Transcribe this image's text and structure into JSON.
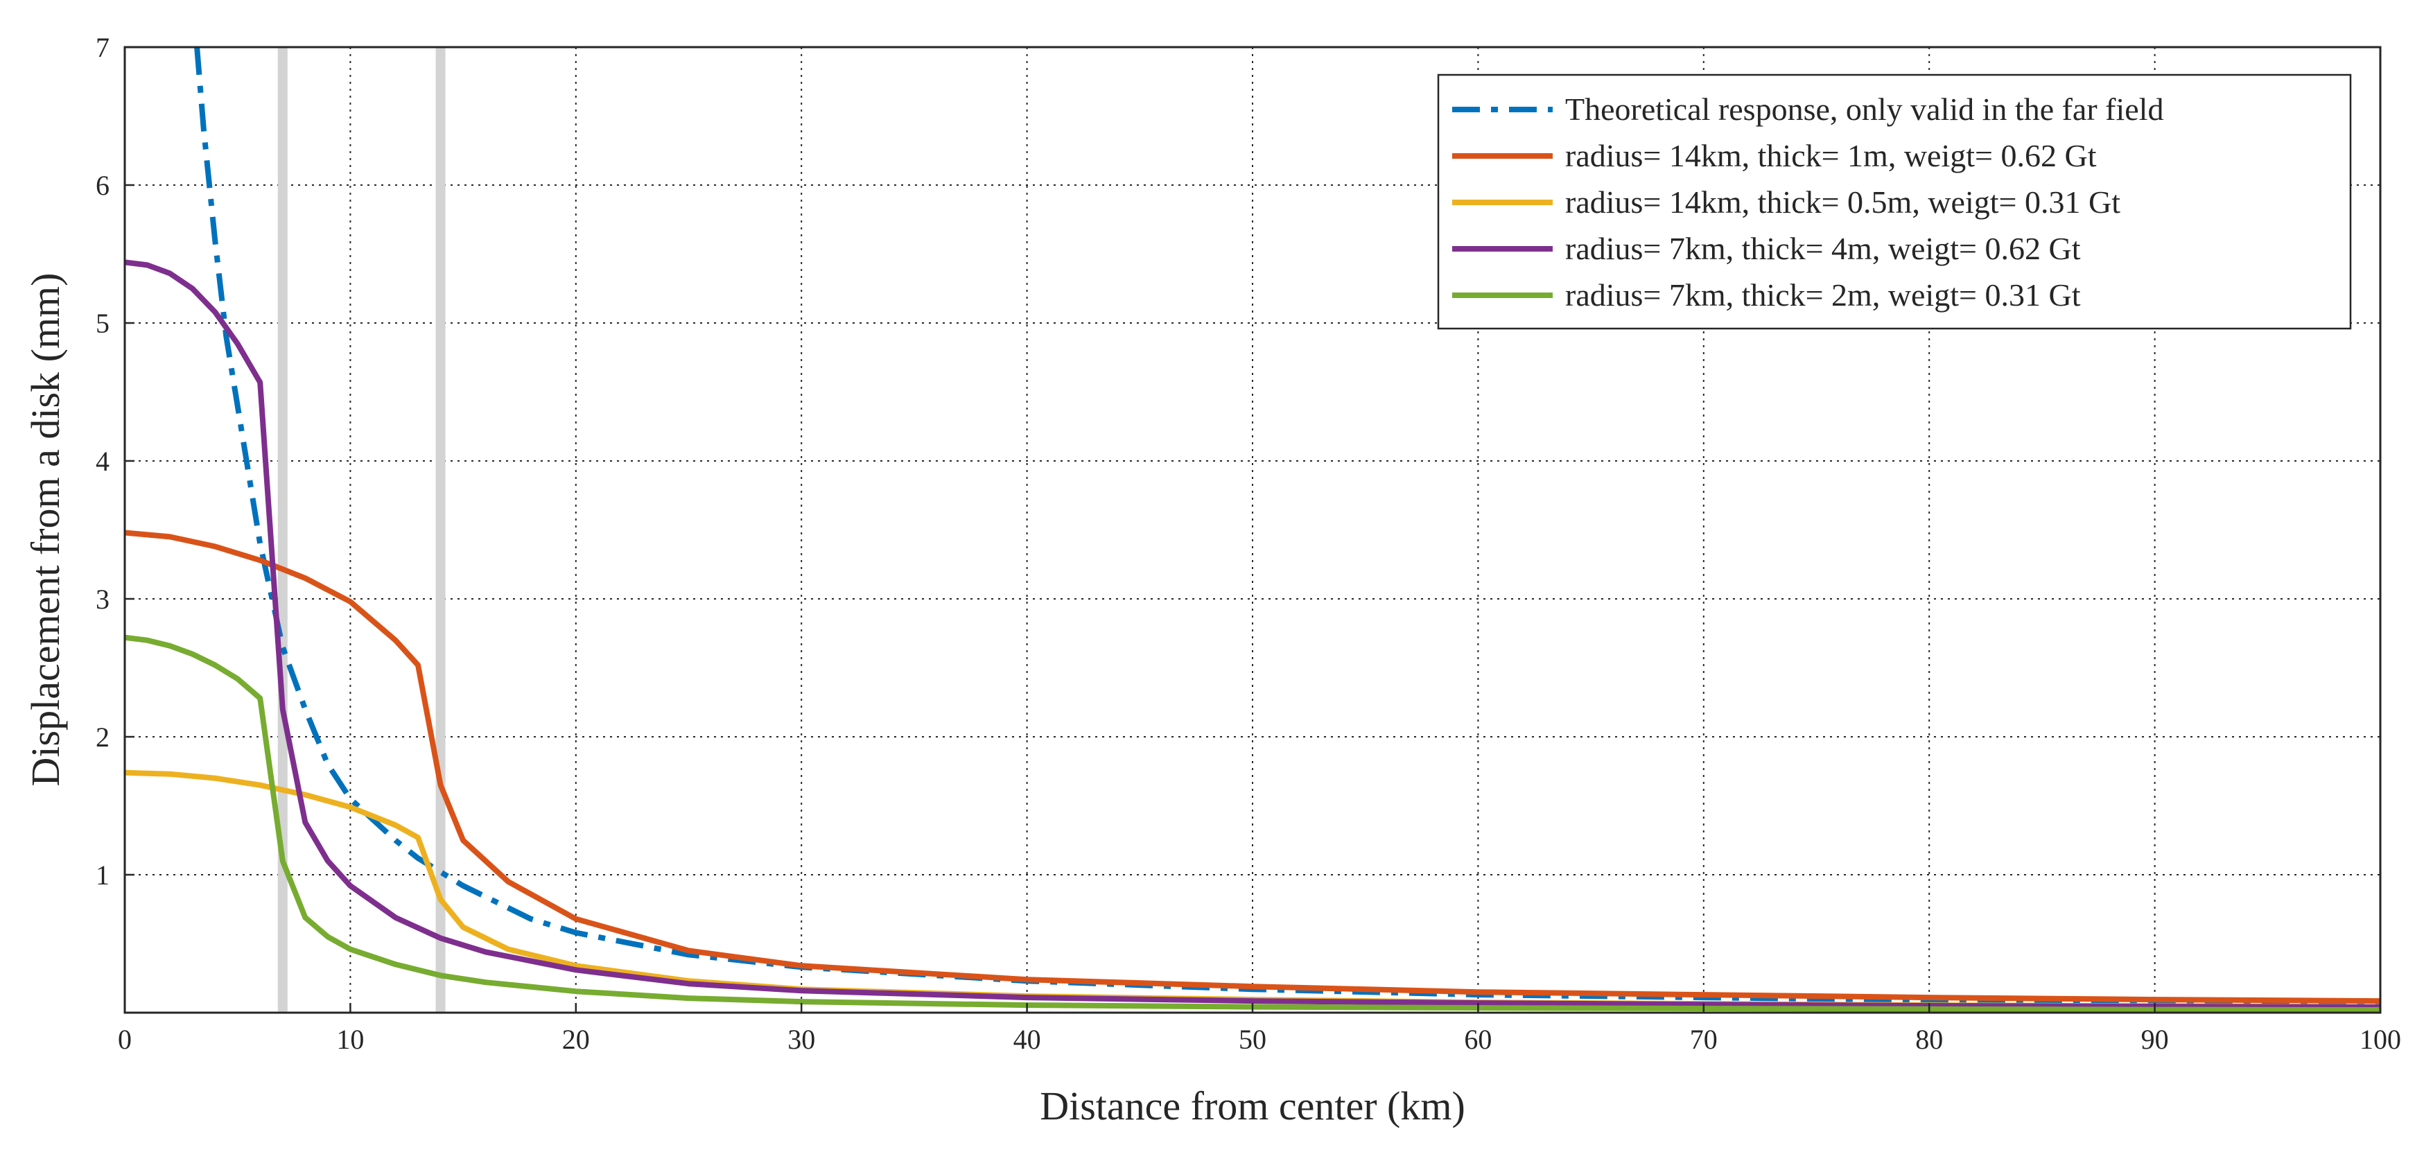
{
  "chart_data": {
    "type": "line",
    "title": "",
    "xlabel": "Distance from center (km)",
    "ylabel": "Displacement from a disk (mm)",
    "xlim": [
      0,
      100
    ],
    "ylim": [
      0,
      7
    ],
    "xticks": [
      0,
      10,
      20,
      30,
      40,
      50,
      60,
      70,
      80,
      90,
      100
    ],
    "yticks": [
      1,
      2,
      3,
      4,
      5,
      6,
      7
    ],
    "xtick_labels": [
      "0",
      "10",
      "20",
      "30",
      "40",
      "50",
      "60",
      "70",
      "80",
      "90",
      "100"
    ],
    "ytick_labels": [
      "1",
      "2",
      "3",
      "4",
      "5",
      "6",
      "7"
    ],
    "grid": true,
    "legend_position": "top-right",
    "vertical_markers": [
      7,
      14
    ],
    "series": [
      {
        "name": "Theoretical response, only valid in the far field",
        "color": "#0072BD",
        "style": "dashdot",
        "x": [
          3.2,
          3.5,
          4,
          4.5,
          5,
          6,
          7,
          8,
          9,
          10,
          11,
          12,
          13,
          14,
          15,
          16,
          18,
          20,
          25,
          30,
          40,
          50,
          60,
          70,
          80,
          90,
          100
        ],
        "y": [
          7.0,
          6.4,
          5.6,
          4.9,
          4.4,
          3.4,
          2.65,
          2.2,
          1.8,
          1.55,
          1.4,
          1.25,
          1.12,
          1.02,
          0.92,
          0.84,
          0.68,
          0.58,
          0.42,
          0.33,
          0.23,
          0.17,
          0.13,
          0.11,
          0.09,
          0.075,
          0.065
        ]
      },
      {
        "name": "radius= 14km, thick= 1m, weigt= 0.62 Gt",
        "color": "#D95319",
        "style": "solid",
        "x": [
          0,
          2,
          4,
          6,
          8,
          10,
          12,
          13,
          14,
          15,
          17,
          20,
          25,
          30,
          40,
          50,
          60,
          70,
          80,
          90,
          100
        ],
        "y": [
          3.48,
          3.45,
          3.38,
          3.28,
          3.15,
          2.98,
          2.7,
          2.52,
          1.65,
          1.25,
          0.95,
          0.68,
          0.45,
          0.34,
          0.24,
          0.19,
          0.15,
          0.13,
          0.11,
          0.095,
          0.085
        ]
      },
      {
        "name": "radius= 14km, thick= 0.5m, weigt= 0.31 Gt",
        "color": "#EDB120",
        "style": "solid",
        "x": [
          0,
          2,
          4,
          6,
          8,
          10,
          12,
          13,
          14,
          15,
          17,
          20,
          25,
          30,
          40,
          50,
          60,
          70,
          80,
          90,
          100
        ],
        "y": [
          1.74,
          1.73,
          1.7,
          1.65,
          1.58,
          1.49,
          1.36,
          1.27,
          0.82,
          0.62,
          0.46,
          0.34,
          0.23,
          0.17,
          0.12,
          0.095,
          0.075,
          0.065,
          0.055,
          0.048,
          0.042
        ]
      },
      {
        "name": "radius= 7km, thick= 4m, weigt= 0.62 Gt",
        "color": "#7E2F8E",
        "style": "solid",
        "x": [
          0,
          1,
          2,
          3,
          4,
          5,
          6,
          7,
          8,
          9,
          10,
          12,
          14,
          16,
          20,
          25,
          30,
          40,
          50,
          60,
          70,
          80,
          90,
          100
        ],
        "y": [
          5.44,
          5.42,
          5.36,
          5.25,
          5.08,
          4.85,
          4.57,
          2.2,
          1.38,
          1.1,
          0.92,
          0.69,
          0.54,
          0.44,
          0.31,
          0.21,
          0.16,
          0.11,
          0.085,
          0.07,
          0.06,
          0.05,
          0.045,
          0.04
        ]
      },
      {
        "name": "radius= 7km, thick= 2m, weigt= 0.31 Gt",
        "color": "#77AC30",
        "style": "solid",
        "x": [
          0,
          1,
          2,
          3,
          4,
          5,
          6,
          7,
          8,
          9,
          10,
          12,
          14,
          16,
          20,
          25,
          30,
          40,
          50,
          60,
          70,
          80,
          90,
          100
        ],
        "y": [
          2.72,
          2.7,
          2.66,
          2.6,
          2.52,
          2.42,
          2.28,
          1.1,
          0.69,
          0.55,
          0.46,
          0.35,
          0.27,
          0.22,
          0.155,
          0.105,
          0.08,
          0.055,
          0.042,
          0.035,
          0.03,
          0.026,
          0.022,
          0.02
        ]
      }
    ]
  }
}
